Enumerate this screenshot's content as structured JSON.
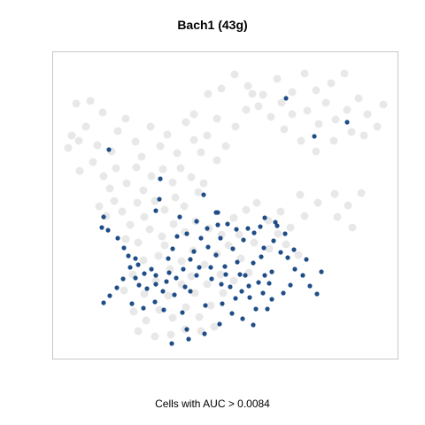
{
  "chart_data": {
    "type": "scatter",
    "title": "Bach1 (43g)",
    "xlabel": "Cells with AUC > 0.0084",
    "ylabel": "",
    "xlim": [
      0,
      390
    ],
    "ylim": [
      0,
      347
    ],
    "grid": false,
    "colors": {
      "background_cells": "#d6d6d6",
      "selected_cells": "#1f4e87",
      "frame": "#c8c8c8"
    },
    "series": [
      {
        "values": [
          [
            27,
            288
          ],
          [
            43,
            291
          ],
          [
            22,
            252
          ],
          [
            18,
            238
          ],
          [
            30,
            246
          ],
          [
            38,
            262
          ],
          [
            51,
            241
          ],
          [
            57,
            278
          ],
          [
            67,
            234
          ],
          [
            74,
            257
          ],
          [
            83,
            271
          ],
          [
            94,
            245
          ],
          [
            101,
            228
          ],
          [
            111,
            262
          ],
          [
            122,
            240
          ],
          [
            130,
            253
          ],
          [
            141,
            232
          ],
          [
            151,
            267
          ],
          [
            160,
            247
          ],
          [
            168,
            233
          ],
          [
            175,
            252
          ],
          [
            31,
            212
          ],
          [
            46,
            222
          ],
          [
            58,
            206
          ],
          [
            65,
            192
          ],
          [
            72,
            215
          ],
          [
            84,
            198
          ],
          [
            95,
            216
          ],
          [
            103,
            190
          ],
          [
            112,
            206
          ],
          [
            125,
            214
          ],
          [
            136,
            199
          ],
          [
            145,
            215
          ],
          [
            157,
            205
          ],
          [
            165,
            188
          ],
          [
            53,
            172
          ],
          [
            61,
            161
          ],
          [
            70,
            178
          ],
          [
            79,
            166
          ],
          [
            88,
            151
          ],
          [
            96,
            176
          ],
          [
            104,
            160
          ],
          [
            116,
            178
          ],
          [
            127,
            168
          ],
          [
            139,
            182
          ],
          [
            149,
            172
          ],
          [
            171,
            198
          ],
          [
            186,
            224
          ],
          [
            160,
            276
          ],
          [
            176,
            299
          ],
          [
            191,
            305
          ],
          [
            206,
            321
          ],
          [
            221,
            308
          ],
          [
            238,
            298
          ],
          [
            254,
            316
          ],
          [
            271,
            301
          ],
          [
            285,
            322
          ],
          [
            298,
            303
          ],
          [
            309,
            289
          ],
          [
            320,
            270
          ],
          [
            333,
            281
          ],
          [
            346,
            294
          ],
          [
            356,
            276
          ],
          [
            367,
            262
          ],
          [
            374,
            287
          ],
          [
            352,
            252
          ],
          [
            338,
            256
          ],
          [
            318,
            246
          ],
          [
            301,
            265
          ],
          [
            288,
            280
          ],
          [
            271,
            276
          ],
          [
            259,
            289
          ],
          [
            247,
            273
          ],
          [
            233,
            285
          ],
          [
            219,
            281
          ],
          [
            207,
            262
          ],
          [
            196,
            240
          ],
          [
            186,
            271
          ],
          [
            262,
            259
          ],
          [
            281,
            246
          ],
          [
            298,
            234
          ],
          [
            226,
            299
          ],
          [
            315,
            311
          ],
          [
            330,
            322
          ],
          [
            319,
            186
          ],
          [
            334,
            173
          ],
          [
            349,
            187
          ],
          [
            322,
            160
          ],
          [
            339,
            148
          ],
          [
            300,
            176
          ],
          [
            285,
            161
          ],
          [
            269,
            148
          ],
          [
            255,
            141
          ],
          [
            244,
            156
          ],
          [
            258,
            166
          ],
          [
            280,
            185
          ],
          [
            231,
            176
          ],
          [
            219,
            168
          ],
          [
            205,
            159
          ],
          [
            191,
            140
          ],
          [
            177,
            147
          ],
          [
            162,
            155
          ],
          [
            150,
            143
          ],
          [
            137,
            152
          ],
          [
            124,
            138
          ],
          [
            110,
            146
          ],
          [
            97,
            131
          ],
          [
            83,
            135
          ],
          [
            120,
            116
          ],
          [
            133,
            101
          ],
          [
            146,
            110
          ],
          [
            159,
            122
          ],
          [
            172,
            106
          ],
          [
            186,
            118
          ],
          [
            199,
            128
          ],
          [
            213,
            113
          ],
          [
            222,
            97
          ],
          [
            205,
            88
          ],
          [
            190,
            95
          ],
          [
            175,
            84
          ],
          [
            161,
            74
          ],
          [
            146,
            84
          ],
          [
            131,
            71
          ],
          [
            117,
            88
          ],
          [
            104,
            73
          ],
          [
            91,
            95
          ],
          [
            81,
            77
          ],
          [
            92,
            53
          ],
          [
            106,
            43
          ],
          [
            121,
            55
          ],
          [
            136,
            46
          ],
          [
            151,
            58
          ],
          [
            166,
            47
          ],
          [
            179,
            60
          ],
          [
            193,
            74
          ],
          [
            183,
            36
          ],
          [
            168,
            31
          ],
          [
            150,
            33
          ],
          [
            134,
            27
          ],
          [
            116,
            25
          ],
          [
            97,
            31
          ],
          [
            103,
            111
          ],
          [
            127,
            128
          ],
          [
            157,
            93
          ],
          [
            211,
            140
          ],
          [
            228,
            131
          ],
          [
            245,
            124
          ],
          [
            264,
            129
          ],
          [
            278,
            117
          ]
        ]
      },
      {
        "values": [
          [
            264,
            294
          ],
          [
            333,
            267
          ],
          [
            296,
            251
          ],
          [
            64,
            236
          ],
          [
            122,
            203
          ],
          [
            171,
            185
          ],
          [
            117,
            167
          ],
          [
            121,
            180
          ],
          [
            144,
            160
          ],
          [
            254,
            150
          ],
          [
            187,
            165
          ],
          [
            185,
            165
          ],
          [
            58,
            160
          ],
          [
            56,
            148
          ],
          [
            63,
            145
          ],
          [
            74,
            136
          ],
          [
            81,
            125
          ],
          [
            86,
            116
          ],
          [
            94,
            113
          ],
          [
            97,
            106
          ],
          [
            88,
            103
          ],
          [
            104,
            96
          ],
          [
            112,
            101
          ],
          [
            117,
            94
          ],
          [
            129,
            87
          ],
          [
            140,
            91
          ],
          [
            148,
            101
          ],
          [
            156,
            112
          ],
          [
            160,
            121
          ],
          [
            136,
            124
          ],
          [
            131,
            113
          ],
          [
            150,
            81
          ],
          [
            166,
            103
          ],
          [
            180,
            90
          ],
          [
            191,
            84
          ],
          [
            201,
            81
          ],
          [
            214,
            76
          ],
          [
            223,
            69
          ],
          [
            233,
            86
          ],
          [
            240,
            94
          ],
          [
            248,
            98
          ],
          [
            236,
            115
          ],
          [
            227,
            108
          ],
          [
            218,
            94
          ],
          [
            209,
            109
          ],
          [
            195,
            104
          ],
          [
            185,
            117
          ],
          [
            176,
            126
          ],
          [
            168,
            136
          ],
          [
            190,
            136
          ],
          [
            204,
            124
          ],
          [
            216,
            134
          ],
          [
            228,
            142
          ],
          [
            239,
            125
          ],
          [
            250,
            133
          ],
          [
            258,
            120
          ],
          [
            266,
            114
          ],
          [
            274,
            101
          ],
          [
            283,
            94
          ],
          [
            291,
            82
          ],
          [
            299,
            73
          ],
          [
            304,
            98
          ],
          [
            287,
            112
          ],
          [
            273,
            123
          ],
          [
            263,
            141
          ],
          [
            252,
            154
          ],
          [
            240,
            159
          ],
          [
            235,
            149
          ],
          [
            221,
            147
          ],
          [
            208,
            146
          ],
          [
            198,
            152
          ],
          [
            187,
            151
          ],
          [
            175,
            147
          ],
          [
            163,
            155
          ],
          [
            152,
            141
          ],
          [
            141,
            138
          ],
          [
            132,
            97
          ],
          [
            125,
            76
          ],
          [
            117,
            84
          ],
          [
            107,
            79
          ],
          [
            98,
            83
          ],
          [
            94,
            91
          ],
          [
            90,
            62
          ],
          [
            103,
            57
          ],
          [
            116,
            64
          ],
          [
            147,
            52
          ],
          [
            173,
            60
          ],
          [
            192,
            62
          ],
          [
            207,
            68
          ],
          [
            238,
            74
          ],
          [
            248,
            67
          ],
          [
            261,
            74
          ],
          [
            269,
            83
          ],
          [
            245,
            85
          ],
          [
            222,
            82
          ],
          [
            212,
            95
          ],
          [
            196,
            95
          ],
          [
            179,
            103
          ],
          [
            163,
            94
          ],
          [
            156,
            76
          ],
          [
            138,
            72
          ],
          [
            126,
            55
          ],
          [
            80,
            90
          ],
          [
            73,
            80
          ],
          [
            65,
            71
          ],
          [
            58,
            63
          ],
          [
            152,
            33
          ],
          [
            172,
            28
          ],
          [
            189,
            39
          ],
          [
            203,
            51
          ],
          [
            215,
            45
          ],
          [
            227,
            38
          ],
          [
            243,
            56
          ],
          [
            230,
            56
          ],
          [
            154,
            22
          ],
          [
            135,
            17
          ]
        ]
      }
    ]
  }
}
